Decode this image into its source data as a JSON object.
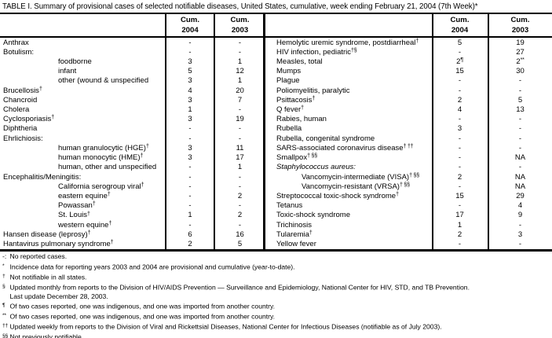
{
  "title": "TABLE I. Summary of provisional cases of selected notifiable diseases, United States, cumulative, week ending February 21, 2004 (7th Week)*",
  "header": {
    "cum": "Cum.",
    "y2004": "2004",
    "y2003": "2003"
  },
  "table": {
    "left_rows": [
      {
        "label": "Anthrax",
        "sup": "",
        "indent": false,
        "italic": false,
        "v2004": "-",
        "s2004": "",
        "v2003": "-",
        "s2003": ""
      },
      {
        "label": "Botulism:",
        "sup": "",
        "indent": false,
        "italic": false,
        "v2004": "-",
        "s2004": "",
        "v2003": "-",
        "s2003": ""
      },
      {
        "label": "foodborne",
        "sup": "",
        "indent": true,
        "italic": false,
        "v2004": "3",
        "s2004": "",
        "v2003": "1",
        "s2003": ""
      },
      {
        "label": "infant",
        "sup": "",
        "indent": true,
        "italic": false,
        "v2004": "5",
        "s2004": "",
        "v2003": "12",
        "s2003": ""
      },
      {
        "label": "other (wound & unspecified",
        "sup": "",
        "indent": true,
        "italic": false,
        "v2004": "3",
        "s2004": "",
        "v2003": "1",
        "s2003": ""
      },
      {
        "label": "Brucellosis",
        "sup": "†",
        "indent": false,
        "italic": false,
        "v2004": "4",
        "s2004": "",
        "v2003": "20",
        "s2003": ""
      },
      {
        "label": "Chancroid",
        "sup": "",
        "indent": false,
        "italic": false,
        "v2004": "3",
        "s2004": "",
        "v2003": "7",
        "s2003": ""
      },
      {
        "label": "Cholera",
        "sup": "",
        "indent": false,
        "italic": false,
        "v2004": "1",
        "s2004": "",
        "v2003": "-",
        "s2003": ""
      },
      {
        "label": "Cyclosporiasis",
        "sup": "†",
        "indent": false,
        "italic": false,
        "v2004": "3",
        "s2004": "",
        "v2003": "19",
        "s2003": ""
      },
      {
        "label": "Diphtheria",
        "sup": "",
        "indent": false,
        "italic": false,
        "v2004": "-",
        "s2004": "",
        "v2003": "-",
        "s2003": ""
      },
      {
        "label": "Ehrlichiosis:",
        "sup": "",
        "indent": false,
        "italic": false,
        "v2004": "-",
        "s2004": "",
        "v2003": "-",
        "s2003": ""
      },
      {
        "label": "human granulocytic (HGE)",
        "sup": "†",
        "indent": true,
        "italic": false,
        "v2004": "3",
        "s2004": "",
        "v2003": "11",
        "s2003": ""
      },
      {
        "label": "human monocytic (HME)",
        "sup": "†",
        "indent": true,
        "italic": false,
        "v2004": "3",
        "s2004": "",
        "v2003": "17",
        "s2003": ""
      },
      {
        "label": "human, other and unspecified",
        "sup": "",
        "indent": true,
        "italic": false,
        "v2004": "-",
        "s2004": "",
        "v2003": "1",
        "s2003": ""
      },
      {
        "label": "Encephalitis/Meningitis:",
        "sup": "",
        "indent": false,
        "italic": false,
        "v2004": "-",
        "s2004": "",
        "v2003": "-",
        "s2003": ""
      },
      {
        "label": "California serogroup viral",
        "sup": "†",
        "indent": true,
        "italic": false,
        "v2004": "-",
        "s2004": "",
        "v2003": "-",
        "s2003": ""
      },
      {
        "label": "eastern equine",
        "sup": "†",
        "indent": true,
        "italic": false,
        "v2004": "-",
        "s2004": "",
        "v2003": "2",
        "s2003": ""
      },
      {
        "label": "Powassan",
        "sup": "†",
        "indent": true,
        "italic": false,
        "v2004": "-",
        "s2004": "",
        "v2003": "-",
        "s2003": ""
      },
      {
        "label": "St. Louis",
        "sup": "†",
        "indent": true,
        "italic": false,
        "v2004": "1",
        "s2004": "",
        "v2003": "2",
        "s2003": ""
      },
      {
        "label": "western equine",
        "sup": "†",
        "indent": true,
        "italic": false,
        "v2004": "-",
        "s2004": "",
        "v2003": "-",
        "s2003": ""
      },
      {
        "label": "Hansen disease (leprosy)",
        "sup": "†",
        "indent": false,
        "italic": false,
        "v2004": "6",
        "s2004": "",
        "v2003": "16",
        "s2003": ""
      },
      {
        "label": "Hantavirus pulmonary syndrome",
        "sup": "†",
        "indent": false,
        "italic": false,
        "v2004": "2",
        "s2004": "",
        "v2003": "5",
        "s2003": ""
      }
    ],
    "right_rows": [
      {
        "label": "Hemolytic uremic syndrome, postdiarrheal",
        "sup": "†",
        "indent": false,
        "italic": false,
        "v2004": "5",
        "s2004": "",
        "v2003": "19",
        "s2003": ""
      },
      {
        "label": "HIV infection, pediatric",
        "sup": "†§",
        "indent": false,
        "italic": false,
        "v2004": "-",
        "s2004": "",
        "v2003": "27",
        "s2003": ""
      },
      {
        "label": "Measles, total",
        "sup": "",
        "indent": false,
        "italic": false,
        "v2004": "2",
        "s2004": "¶",
        "v2003": "2",
        "s2003": "**"
      },
      {
        "label": "Mumps",
        "sup": "",
        "indent": false,
        "italic": false,
        "v2004": "15",
        "s2004": "",
        "v2003": "30",
        "s2003": ""
      },
      {
        "label": "Plague",
        "sup": "",
        "indent": false,
        "italic": false,
        "v2004": "-",
        "s2004": "",
        "v2003": "-",
        "s2003": ""
      },
      {
        "label": "Poliomyelitis, paralytic",
        "sup": "",
        "indent": false,
        "italic": false,
        "v2004": "-",
        "s2004": "",
        "v2003": "-",
        "s2003": ""
      },
      {
        "label": "Psittacosis",
        "sup": "†",
        "indent": false,
        "italic": false,
        "v2004": "2",
        "s2004": "",
        "v2003": "5",
        "s2003": ""
      },
      {
        "label": "Q fever",
        "sup": "†",
        "indent": false,
        "italic": false,
        "v2004": "4",
        "s2004": "",
        "v2003": "13",
        "s2003": ""
      },
      {
        "label": "Rabies, human",
        "sup": "",
        "indent": false,
        "italic": false,
        "v2004": "-",
        "s2004": "",
        "v2003": "-",
        "s2003": ""
      },
      {
        "label": "Rubella",
        "sup": "",
        "indent": false,
        "italic": false,
        "v2004": "3",
        "s2004": "",
        "v2003": "-",
        "s2003": ""
      },
      {
        "label": "Rubella, congenital syndrome",
        "sup": "",
        "indent": false,
        "italic": false,
        "v2004": "-",
        "s2004": "",
        "v2003": "-",
        "s2003": ""
      },
      {
        "label": "SARS-associated coronavirus disease",
        "sup": "† ††",
        "indent": false,
        "italic": false,
        "v2004": "-",
        "s2004": "",
        "v2003": "-",
        "s2003": ""
      },
      {
        "label": "Smallpox",
        "sup": "† §§",
        "indent": false,
        "italic": false,
        "v2004": "-",
        "s2004": "",
        "v2003": "NA",
        "s2003": ""
      },
      {
        "label": "Staphylococcus aureus:",
        "sup": "",
        "indent": false,
        "italic": true,
        "v2004": "-",
        "s2004": "",
        "v2003": "-",
        "s2003": ""
      },
      {
        "label": "Vancomycin-intermediate (VISA)",
        "sup": "† §§",
        "indent": true,
        "italic": false,
        "v2004": "2",
        "s2004": "",
        "v2003": "NA",
        "s2003": ""
      },
      {
        "label": "Vancomycin-resistant (VRSA)",
        "sup": "† §§",
        "indent": true,
        "italic": false,
        "v2004": "-",
        "s2004": "",
        "v2003": "NA",
        "s2003": ""
      },
      {
        "label": "Streptococcal toxic-shock syndrome",
        "sup": "†",
        "indent": false,
        "italic": false,
        "v2004": "15",
        "s2004": "",
        "v2003": "29",
        "s2003": ""
      },
      {
        "label": "Tetanus",
        "sup": "",
        "indent": false,
        "italic": false,
        "v2004": "-",
        "s2004": "",
        "v2003": "4",
        "s2003": ""
      },
      {
        "label": "Toxic-shock syndrome",
        "sup": "",
        "indent": false,
        "italic": false,
        "v2004": "17",
        "s2004": "",
        "v2003": "9",
        "s2003": ""
      },
      {
        "label": "Trichinosis",
        "sup": "",
        "indent": false,
        "italic": false,
        "v2004": "1",
        "s2004": "",
        "v2003": "-",
        "s2003": ""
      },
      {
        "label": "Tularemia",
        "sup": "†",
        "indent": false,
        "italic": false,
        "v2004": "2",
        "s2004": "",
        "v2003": "3",
        "s2003": ""
      },
      {
        "label": "Yellow fever",
        "sup": "",
        "indent": false,
        "italic": false,
        "v2004": "-",
        "s2004": "",
        "v2003": "-",
        "s2003": ""
      }
    ]
  },
  "footnotes": [
    {
      "marker": "-:",
      "raised": false,
      "text": "No reported cases."
    },
    {
      "marker": "*",
      "raised": true,
      "text": "Incidence data for reporting years 2003 and 2004 are provisional and cumulative (year-to-date)."
    },
    {
      "marker": "†",
      "raised": true,
      "text": "Not notifiable in all states."
    },
    {
      "marker": "§",
      "raised": true,
      "text": "Updated monthly from reports to the Division of HIV/AIDS Prevention — Surveillance and Epidemiology, National Center for HIV, STD, and TB Prevention."
    },
    {
      "marker": "",
      "raised": false,
      "text": "Last update December 28, 2003."
    },
    {
      "marker": "¶",
      "raised": true,
      "text": "Of two cases reported, one was indigenous, and one was imported from another country."
    },
    {
      "marker": "**",
      "raised": true,
      "text": "Of two cases reported, one was indigenous, and one was imported from another country."
    },
    {
      "marker": "††",
      "raised": true,
      "text": "Updated weekly from reports to the Division of Viral and Rickettsial Diseases, National Center for Infectious Diseases (notifiable as of July 2003)."
    },
    {
      "marker": "§§",
      "raised": true,
      "text": "Not previously notifiable."
    }
  ]
}
